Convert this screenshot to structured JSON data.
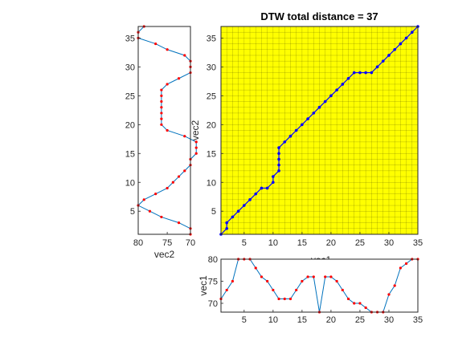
{
  "chart_data": [
    {
      "id": "dtw-path",
      "type": "line",
      "title": "DTW total distance = 37",
      "xlabel": "vec1",
      "ylabel": "vec2",
      "xlim": [
        1,
        35
      ],
      "ylim": [
        1,
        37
      ],
      "xticks": [
        5,
        10,
        15,
        20,
        25,
        30,
        35
      ],
      "yticks": [
        5,
        10,
        15,
        20,
        25,
        30,
        35
      ],
      "grid": true,
      "background": "#ffff00",
      "grid_color": "#000000",
      "line_color": "#0000ff",
      "points": [
        [
          1,
          1
        ],
        [
          2,
          2
        ],
        [
          2,
          3
        ],
        [
          3,
          4
        ],
        [
          4,
          5
        ],
        [
          5,
          6
        ],
        [
          6,
          7
        ],
        [
          7,
          8
        ],
        [
          8,
          9
        ],
        [
          9,
          9
        ],
        [
          10,
          10
        ],
        [
          10,
          11
        ],
        [
          11,
          12
        ],
        [
          11,
          13
        ],
        [
          11,
          14
        ],
        [
          11,
          15
        ],
        [
          11,
          16
        ],
        [
          12,
          17
        ],
        [
          13,
          18
        ],
        [
          14,
          19
        ],
        [
          15,
          20
        ],
        [
          16,
          21
        ],
        [
          17,
          22
        ],
        [
          18,
          23
        ],
        [
          19,
          24
        ],
        [
          20,
          25
        ],
        [
          21,
          26
        ],
        [
          22,
          27
        ],
        [
          23,
          28
        ],
        [
          24,
          29
        ],
        [
          25,
          29
        ],
        [
          26,
          29
        ],
        [
          27,
          29
        ],
        [
          28,
          30
        ],
        [
          29,
          31
        ],
        [
          30,
          32
        ],
        [
          31,
          33
        ],
        [
          32,
          34
        ],
        [
          33,
          35
        ],
        [
          34,
          36
        ],
        [
          35,
          37
        ]
      ]
    },
    {
      "id": "vec2",
      "type": "line",
      "orientation": "vertical",
      "xlabel": "vec2",
      "xlim": [
        71,
        80
      ],
      "x_reversed": true,
      "ylim": [
        1,
        37
      ],
      "xticks": [
        80,
        75,
        70
      ],
      "yticks": [
        5,
        10,
        15,
        20,
        25,
        30,
        35
      ],
      "line_color": "#0072bd",
      "marker_color": "#ff0000",
      "values": [
        71,
        71,
        73,
        76,
        78,
        80,
        79,
        77,
        75,
        74,
        73,
        72,
        71,
        71,
        70,
        70,
        70,
        72,
        75,
        76,
        76,
        76,
        76,
        76,
        76,
        76,
        75,
        73,
        71,
        71,
        71,
        72,
        75,
        77,
        80,
        80,
        79
      ]
    },
    {
      "id": "vec1",
      "type": "line",
      "ylabel": "vec1",
      "xlim": [
        1,
        35
      ],
      "ylim": [
        68,
        80
      ],
      "xticks": [
        5,
        10,
        15,
        20,
        25,
        30,
        35
      ],
      "yticks": [
        70,
        75,
        80
      ],
      "line_color": "#0072bd",
      "marker_color": "#ff0000",
      "values": [
        71,
        73,
        75,
        80,
        80,
        80,
        78,
        76,
        75,
        73,
        71,
        71,
        71,
        73,
        75,
        76,
        76,
        68,
        76,
        76,
        75,
        73,
        71,
        70,
        70,
        69,
        68,
        68,
        68,
        72,
        74,
        78,
        79,
        80,
        80
      ]
    }
  ]
}
